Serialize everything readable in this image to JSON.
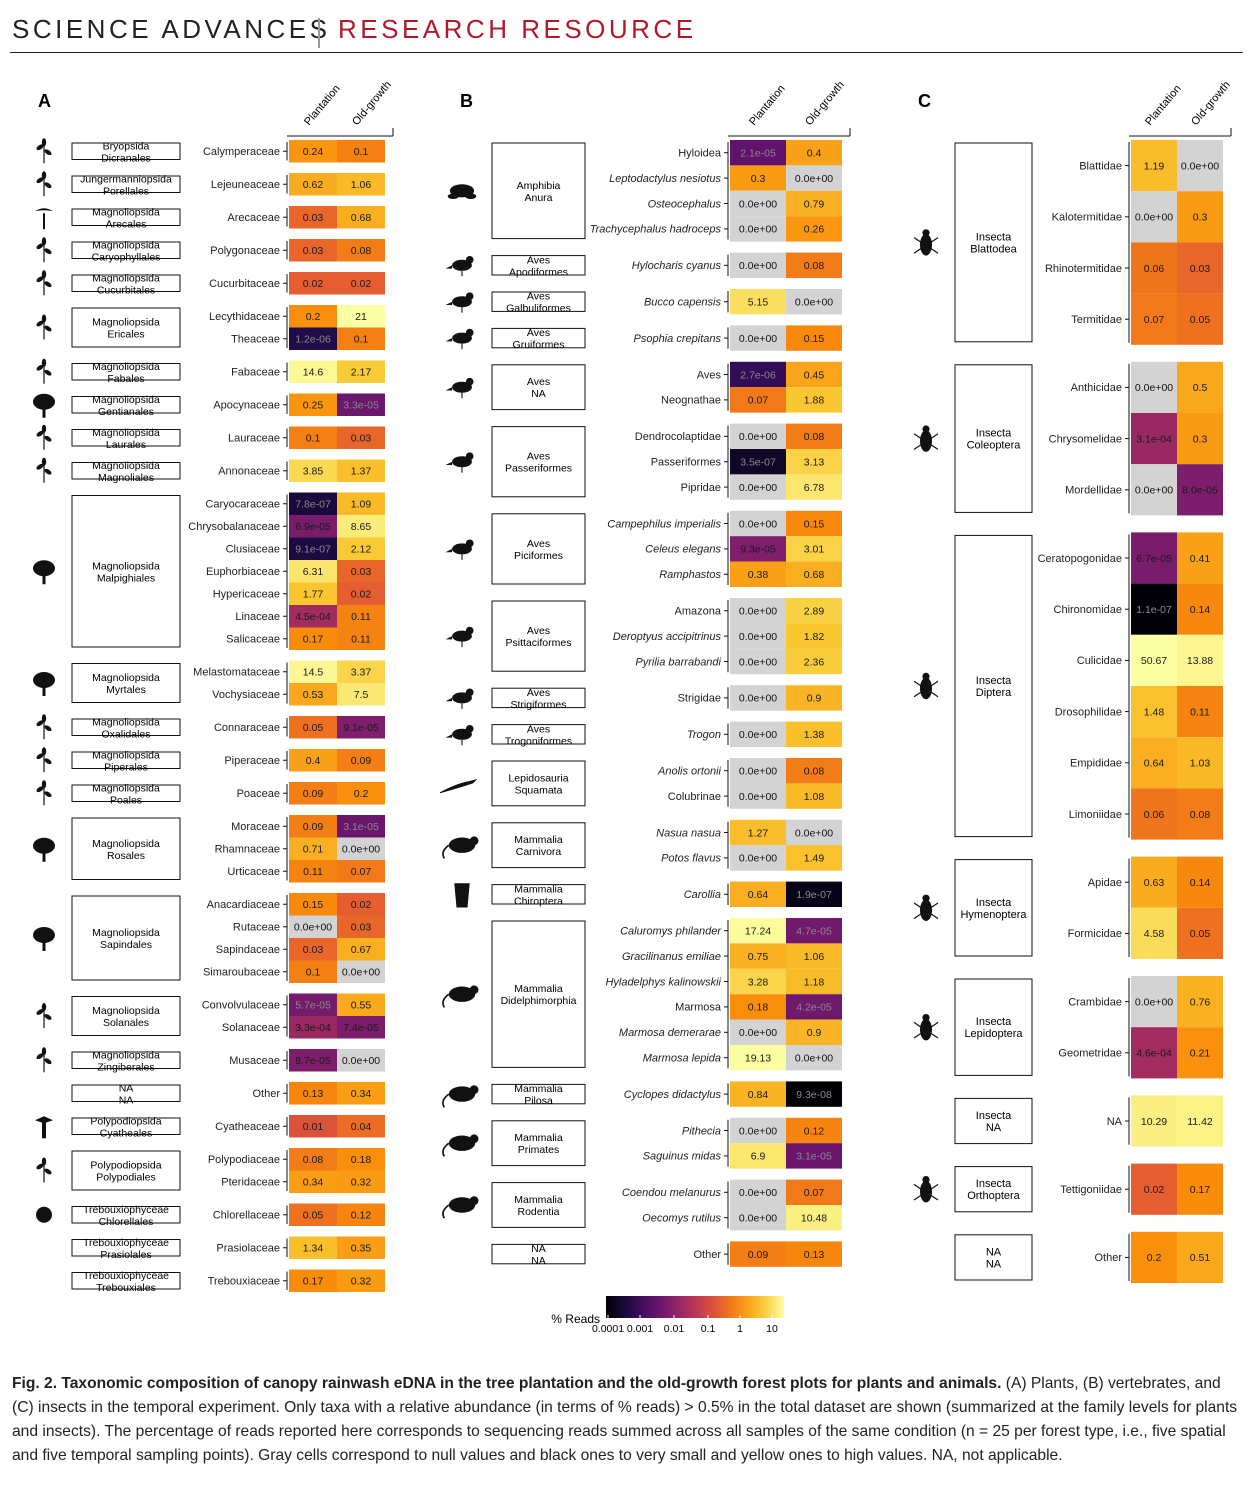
{
  "header": {
    "journal": "SCIENCE ADVANCES",
    "section": "RESEARCH RESOURCE"
  },
  "columns": [
    "Plantation",
    "Old-growth"
  ],
  "legend": {
    "title": "% Reads",
    "ticks": [
      "0.0001",
      "0.001",
      "0.01",
      "0.1",
      "1",
      "10"
    ]
  },
  "colors": {
    "null": "#d3d3d3",
    "low": "#000004",
    "mid1": "#57106e",
    "mid2": "#bc3754",
    "mid3": "#f98e09",
    "high": "#fcffa4"
  },
  "caption": {
    "label": "Fig. 2. Taxonomic composition of canopy rainwash eDNA in the tree plantation and the old-growth forest plots for plants and animals.",
    "text": " (A) Plants, (B) vertebrates, and (C) insects in the temporal experiment. Only taxa with a relative abundance (in terms of % reads) > 0.5% in the total dataset are shown (summarized at the family levels for plants and insects). The percentage of reads reported here corresponds to sequencing reads summed across all samples of the same condition (n = 25 per forest type, i.e., five spatial and five temporal sampling points). Gray cells correspond to null values and black ones to very small and yellow ones to high values. NA, not applicable."
  },
  "panels": [
    {
      "label": "A",
      "groups": [
        {
          "c": "Bryopsida",
          "o": "Dicranales",
          "icon": "moss-icon",
          "rows": [
            [
              "Calymperaceae",
              "0.24",
              "0.1"
            ]
          ]
        },
        {
          "c": "Jungermanniopsida",
          "o": "Porellales",
          "icon": "liverwort-icon",
          "rows": [
            [
              "Lejeuneaceae",
              "0.62",
              "1.06"
            ]
          ]
        },
        {
          "c": "Magnoliopsida",
          "o": "Arecales",
          "icon": "palm-icon",
          "rows": [
            [
              "Arecaceae",
              "0.03",
              "0.68"
            ]
          ]
        },
        {
          "c": "Magnoliopsida",
          "o": "Caryophyllales",
          "icon": "plant-icon",
          "rows": [
            [
              "Polygonaceae",
              "0.03",
              "0.08"
            ]
          ]
        },
        {
          "c": "Magnoliopsida",
          "o": "Cucurbitales",
          "icon": "leaf-icon",
          "rows": [
            [
              "Cucurbitaceae",
              "0.02",
              "0.02"
            ]
          ]
        },
        {
          "c": "Magnoliopsida",
          "o": "Ericales",
          "icon": "shrub-icon",
          "rows": [
            [
              "Lecythidaceae",
              "0.2",
              "21"
            ],
            [
              "Theaceae",
              "1.2e-06",
              "0.1"
            ]
          ]
        },
        {
          "c": "Magnoliopsida",
          "o": "Fabales",
          "icon": "pea-icon",
          "rows": [
            [
              "Fabaceae",
              "14.6",
              "2.17"
            ]
          ]
        },
        {
          "c": "Magnoliopsida",
          "o": "Gentianales",
          "icon": "tree-icon",
          "rows": [
            [
              "Apocynaceae",
              "0.25",
              "3.3e-05"
            ]
          ]
        },
        {
          "c": "Magnoliopsida",
          "o": "Laurales",
          "icon": "leaf-icon",
          "rows": [
            [
              "Lauraceae",
              "0.1",
              "0.03"
            ]
          ]
        },
        {
          "c": "Magnoliopsida",
          "o": "Magnoliales",
          "icon": "leaf-icon",
          "rows": [
            [
              "Annonaceae",
              "3.85",
              "1.37"
            ]
          ]
        },
        {
          "c": "Magnoliopsida",
          "o": "Malpighiales",
          "icon": "tree-icon",
          "rows": [
            [
              "Caryocaraceae",
              "7.8e-07",
              "1.09"
            ],
            [
              "Chrysobalanaceae",
              "6.9e-05",
              "8.65"
            ],
            [
              "Clusiaceae",
              "9.1e-07",
              "2.12"
            ],
            [
              "Euphorbiaceae",
              "6.31",
              "0.03"
            ],
            [
              "Hypericaceae",
              "1.77",
              "0.02"
            ],
            [
              "Linaceae",
              "4.5e-04",
              "0.11"
            ],
            [
              "Salicaceae",
              "0.17",
              "0.11"
            ]
          ]
        },
        {
          "c": "Magnoliopsida",
          "o": "Myrtales",
          "icon": "tree-icon",
          "rows": [
            [
              "Melastomataceae",
              "14.5",
              "3.37"
            ],
            [
              "Vochysiaceae",
              "0.53",
              "7.5"
            ]
          ]
        },
        {
          "c": "Magnoliopsida",
          "o": "Oxalidales",
          "icon": "leaf-icon",
          "rows": [
            [
              "Connaraceae",
              "0.05",
              "9.1e-05"
            ]
          ]
        },
        {
          "c": "Magnoliopsida",
          "o": "Piperales",
          "icon": "leaf-icon",
          "rows": [
            [
              "Piperaceae",
              "0.4",
              "0.09"
            ]
          ]
        },
        {
          "c": "Magnoliopsida",
          "o": "Poales",
          "icon": "grass-icon",
          "rows": [
            [
              "Poaceae",
              "0.09",
              "0.2"
            ]
          ]
        },
        {
          "c": "Magnoliopsida",
          "o": "Rosales",
          "icon": "tree-icon",
          "rows": [
            [
              "Moraceae",
              "0.09",
              "3.1e-05"
            ],
            [
              "Rhamnaceae",
              "0.71",
              "0.0e+00"
            ],
            [
              "Urticaceae",
              "0.11",
              "0.07"
            ]
          ]
        },
        {
          "c": "Magnoliopsida",
          "o": "Sapindales",
          "icon": "tree-icon",
          "rows": [
            [
              "Anacardiaceae",
              "0.15",
              "0.02"
            ],
            [
              "Rutaceae",
              "0.0e+00",
              "0.03"
            ],
            [
              "Sapindaceae",
              "0.03",
              "0.67"
            ],
            [
              "Simaroubaceae",
              "0.1",
              "0.0e+00"
            ]
          ]
        },
        {
          "c": "Magnoliopsida",
          "o": "Solanales",
          "icon": "plant-icon",
          "rows": [
            [
              "Convolvulaceae",
              "5.7e-05",
              "0.55"
            ],
            [
              "Solanaceae",
              "3.3e-04",
              "7.4e-05"
            ]
          ]
        },
        {
          "c": "Magnoliopsida",
          "o": "Zingiberales",
          "icon": "plant-icon",
          "rows": [
            [
              "Musaceae",
              "8.7e-05",
              "0.0e+00"
            ]
          ]
        },
        {
          "c": "NA",
          "o": "NA",
          "icon": "",
          "rows": [
            [
              "Other",
              "0.13",
              "0.34"
            ]
          ]
        },
        {
          "c": "Polypodiopsida",
          "o": "Cyatheales",
          "icon": "tree-fern-icon",
          "rows": [
            [
              "Cyatheaceae",
              "0.01",
              "0.04"
            ]
          ]
        },
        {
          "c": "Polypodiopsida",
          "o": "Polypodiales",
          "icon": "fern-icon",
          "rows": [
            [
              "Polypodiaceae",
              "0.08",
              "0.18"
            ],
            [
              "Pteridaceae",
              "0.34",
              "0.32"
            ]
          ]
        },
        {
          "c": "Trebouxiophyceae",
          "o": "Chlorellales",
          "icon": "alga-icon",
          "rows": [
            [
              "Chlorellaceae",
              "0.05",
              "0.12"
            ]
          ]
        },
        {
          "c": "Trebouxiophyceae",
          "o": "Prasiolales",
          "icon": "",
          "rows": [
            [
              "Prasiolaceae",
              "1.34",
              "0.35"
            ]
          ]
        },
        {
          "c": "Trebouxiophyceae",
          "o": "Trebouxiales",
          "icon": "",
          "rows": [
            [
              "Trebouxiaceae",
              "0.17",
              "0.32"
            ]
          ]
        }
      ]
    },
    {
      "label": "B",
      "groups": [
        {
          "c": "Amphibia",
          "o": "Anura",
          "icon": "frog-icon",
          "rows": [
            [
              "Hyloidea",
              "2.1e-05",
              "0.4",
              0
            ],
            [
              "Leptodactylus nesiotus",
              "0.3",
              "0.0e+00",
              1
            ],
            [
              "Osteocephalus",
              "0.0e+00",
              "0.79",
              1
            ],
            [
              "Trachycephalus hadroceps",
              "0.0e+00",
              "0.26",
              1
            ]
          ]
        },
        {
          "c": "Aves",
          "o": "Apodiformes",
          "icon": "bird-icon",
          "rows": [
            [
              "Hylocharis cyanus",
              "0.0e+00",
              "0.08",
              1
            ]
          ]
        },
        {
          "c": "Aves",
          "o": "Galbuliformes",
          "icon": "bird-icon",
          "rows": [
            [
              "Bucco capensis",
              "5.15",
              "0.0e+00",
              1
            ]
          ]
        },
        {
          "c": "Aves",
          "o": "Gruiformes",
          "icon": "bird-icon",
          "rows": [
            [
              "Psophia crepitans",
              "0.0e+00",
              "0.15",
              1
            ]
          ]
        },
        {
          "c": "Aves",
          "o": "NA",
          "icon": "bird-icon",
          "rows": [
            [
              "Aves",
              "2.7e-06",
              "0.45",
              0
            ],
            [
              "Neognathae",
              "0.07",
              "1.88",
              0
            ]
          ]
        },
        {
          "c": "Aves",
          "o": "Passeriformes",
          "icon": "bird-icon",
          "rows": [
            [
              "Dendrocolaptidae",
              "0.0e+00",
              "0.08",
              0
            ],
            [
              "Passeriformes",
              "3.5e-07",
              "3.13",
              0
            ],
            [
              "Pipridae",
              "0.0e+00",
              "6.78",
              0
            ]
          ]
        },
        {
          "c": "Aves",
          "o": "Piciformes",
          "icon": "toucan-icon",
          "rows": [
            [
              "Campephilus imperialis",
              "0.0e+00",
              "0.15",
              1
            ],
            [
              "Celeus elegans",
              "9.3e-05",
              "3.01",
              1
            ],
            [
              "Ramphastos",
              "0.38",
              "0.68",
              1
            ]
          ]
        },
        {
          "c": "Aves",
          "o": "Psittaciformes",
          "icon": "parrot-icon",
          "rows": [
            [
              "Amazona",
              "0.0e+00",
              "2.89",
              0
            ],
            [
              "Deroptyus accipitrinus",
              "0.0e+00",
              "1.82",
              1
            ],
            [
              "Pyrilia barrabandi",
              "0.0e+00",
              "2.36",
              1
            ]
          ]
        },
        {
          "c": "Aves",
          "o": "Strigiformes",
          "icon": "owl-icon",
          "rows": [
            [
              "Strigidae",
              "0.0e+00",
              "0.9",
              0
            ]
          ]
        },
        {
          "c": "Aves",
          "o": "Trogoniformes",
          "icon": "bird-icon",
          "rows": [
            [
              "Trogon",
              "0.0e+00",
              "1.38",
              1
            ]
          ]
        },
        {
          "c": "Lepidosauria",
          "o": "Squamata",
          "icon": "lizard-icon",
          "rows": [
            [
              "Anolis ortonii",
              "0.0e+00",
              "0.08",
              1
            ],
            [
              "Colubrinae",
              "0.0e+00",
              "1.08",
              0
            ]
          ]
        },
        {
          "c": "Mammalia",
          "o": "Carnivora",
          "icon": "coati-icon",
          "rows": [
            [
              "Nasua nasua",
              "1.27",
              "0.0e+00",
              1
            ],
            [
              "Potos flavus",
              "0.0e+00",
              "1.49",
              1
            ]
          ]
        },
        {
          "c": "Mammalia",
          "o": "Chiroptera",
          "icon": "bat-icon",
          "rows": [
            [
              "Carollia",
              "0.64",
              "1.9e-07",
              1
            ]
          ]
        },
        {
          "c": "Mammalia",
          "o": "Didelphimorphia",
          "icon": "opossum-icon",
          "rows": [
            [
              "Caluromys philander",
              "17.24",
              "4.7e-05",
              1
            ],
            [
              "Gracilinanus emiliae",
              "0.75",
              "1.06",
              1
            ],
            [
              "Hyladelphys kalinowskii",
              "3.28",
              "1.18",
              1
            ],
            [
              "Marmosa",
              "0.18",
              "4.2e-05",
              0
            ],
            [
              "Marmosa demerarae",
              "0.0e+00",
              "0.9",
              1
            ],
            [
              "Marmosa lepida",
              "19.13",
              "0.0e+00",
              1
            ]
          ]
        },
        {
          "c": "Mammalia",
          "o": "Pilosa",
          "icon": "anteater-icon",
          "rows": [
            [
              "Cyclopes didactylus",
              "0.84",
              "9.3e-08",
              1
            ]
          ]
        },
        {
          "c": "Mammalia",
          "o": "Primates",
          "icon": "monkey-icon",
          "rows": [
            [
              "Pithecia",
              "0.0e+00",
              "0.12",
              1
            ],
            [
              "Saguinus midas",
              "6.9",
              "3.1e-05",
              1
            ]
          ]
        },
        {
          "c": "Mammalia",
          "o": "Rodentia",
          "icon": "rodent-icon",
          "rows": [
            [
              "Coendou melanurus",
              "0.0e+00",
              "0.07",
              1
            ],
            [
              "Oecomys rutilus",
              "0.0e+00",
              "10.48",
              1
            ]
          ]
        },
        {
          "c": "NA",
          "o": "NA",
          "icon": "",
          "rows": [
            [
              "Other",
              "0.09",
              "0.13",
              0
            ]
          ]
        }
      ]
    },
    {
      "label": "C",
      "groups": [
        {
          "c": "Insecta",
          "o": "Blattodea",
          "icon": "cockroach-icon",
          "rows": [
            [
              "Blattidae",
              "1.19",
              "0.0e+00"
            ],
            [
              "Kalotermitidae",
              "0.0e+00",
              "0.3"
            ],
            [
              "Rhinotermitidae",
              "0.06",
              "0.03"
            ],
            [
              "Termitidae",
              "0.07",
              "0.05"
            ]
          ]
        },
        {
          "c": "Insecta",
          "o": "Coleoptera",
          "icon": "beetle-icon",
          "rows": [
            [
              "Anthicidae",
              "0.0e+00",
              "0.5"
            ],
            [
              "Chrysomelidae",
              "3.1e-04",
              "0.3"
            ],
            [
              "Mordellidae",
              "0.0e+00",
              "8.0e-05"
            ]
          ]
        },
        {
          "c": "Insecta",
          "o": "Diptera",
          "icon": "fly-icon",
          "rows": [
            [
              "Ceratopogonidae",
              "6.7e-05",
              "0.41"
            ],
            [
              "Chironomidae",
              "1.1e-07",
              "0.14"
            ],
            [
              "Culicidae",
              "50.67",
              "13.88"
            ],
            [
              "Drosophilidae",
              "1.48",
              "0.11"
            ],
            [
              "Empididae",
              "0.64",
              "1.03"
            ],
            [
              "Limoniidae",
              "0.06",
              "0.08"
            ]
          ]
        },
        {
          "c": "Insecta",
          "o": "Hymenoptera",
          "icon": "bee-icon",
          "rows": [
            [
              "Apidae",
              "0.63",
              "0.14"
            ],
            [
              "Formicidae",
              "4.58",
              "0.05"
            ]
          ]
        },
        {
          "c": "Insecta",
          "o": "Lepidoptera",
          "icon": "moth-icon",
          "rows": [
            [
              "Crambidae",
              "0.0e+00",
              "0.76"
            ],
            [
              "Geometridae",
              "4.6e-04",
              "0.21"
            ]
          ]
        },
        {
          "c": "Insecta",
          "o": "NA",
          "icon": "",
          "rows": [
            [
              "NA",
              "10.29",
              "11.42"
            ]
          ]
        },
        {
          "c": "Insecta",
          "o": "Orthoptera",
          "icon": "cricket-icon",
          "rows": [
            [
              "Tettigoniidae",
              "0.02",
              "0.17"
            ]
          ]
        },
        {
          "c": "NA",
          "o": "NA",
          "icon": "",
          "rows": [
            [
              "Other",
              "0.2",
              "0.51"
            ]
          ]
        }
      ]
    }
  ]
}
